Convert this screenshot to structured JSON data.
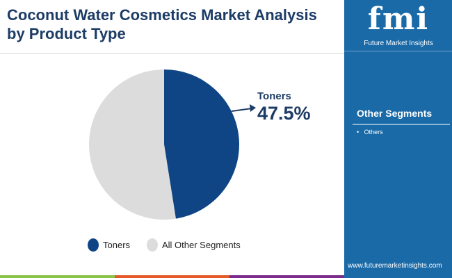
{
  "title": "Coconut Water Cosmetics Market Analysis by Product Type",
  "brand": {
    "logo_text": "fmi",
    "name": "Future Market Insights",
    "url": "www.futuremarketinsights.com"
  },
  "side_panel": {
    "title": "Other Segments",
    "items": [
      "Others"
    ]
  },
  "colors": {
    "toners": "#0f4584",
    "others": "#dcdcdc",
    "panel": "#1a6aa8",
    "title": "#1d3c66",
    "bars": [
      "#8bc34a",
      "#e35b2a",
      "#7b2d8b"
    ]
  },
  "chart_data": {
    "type": "pie",
    "slices": [
      {
        "name": "Toners",
        "value": 47.5,
        "label": "47.5%"
      },
      {
        "name": "All Other Segments",
        "value": 52.5
      }
    ],
    "legend": [
      "Toners",
      "All Other Segments"
    ],
    "legend_placement": "bottom",
    "start": "top",
    "direction": "clockwise"
  }
}
